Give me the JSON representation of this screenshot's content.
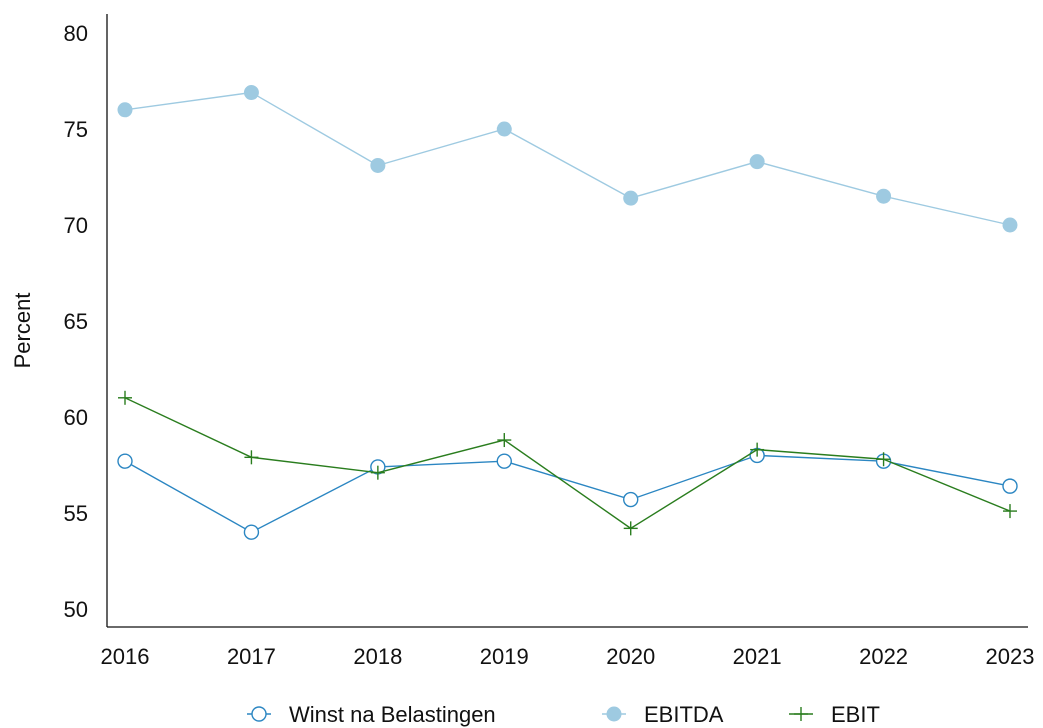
{
  "chart_data": {
    "type": "line",
    "title": "",
    "xlabel": "",
    "ylabel": "Percent",
    "categories": [
      "2016",
      "2017",
      "2018",
      "2019",
      "2020",
      "2021",
      "2022",
      "2023"
    ],
    "ylim": [
      50,
      80
    ],
    "yticks": [
      50,
      55,
      60,
      65,
      70,
      75,
      80
    ],
    "grid": false,
    "legend_position": "bottom",
    "series": [
      {
        "name": "Winst na Belastingen",
        "marker": "hollow-circle",
        "color": "#2b86c2",
        "values": [
          57.7,
          54.0,
          57.4,
          57.7,
          55.7,
          58.0,
          57.7,
          56.4
        ]
      },
      {
        "name": "EBITDA",
        "marker": "filled-circle",
        "color": "#9ecae1",
        "values": [
          76.0,
          76.9,
          73.1,
          75.0,
          71.4,
          73.3,
          71.5,
          70.0
        ]
      },
      {
        "name": "EBIT",
        "marker": "plus",
        "color": "#2a7d1e",
        "values": [
          61.0,
          57.9,
          57.1,
          58.8,
          54.2,
          58.3,
          57.8,
          55.1
        ]
      }
    ]
  }
}
